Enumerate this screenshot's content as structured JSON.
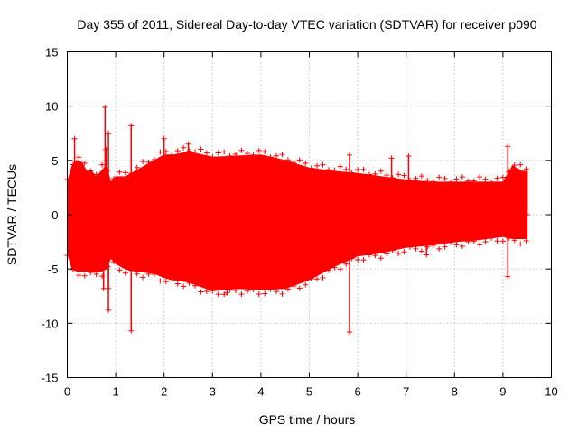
{
  "chart_data": {
    "type": "scatter",
    "title": "Day 355 of 2011, Sidereal Day-to-day VTEC variation (SDTVAR) for receiver p090",
    "xlabel": "GPS time / hours",
    "ylabel": "SDTVAR / TECUs",
    "xlim": [
      0,
      10
    ],
    "ylim": [
      -15,
      15
    ],
    "grid": true,
    "legend": "none",
    "xticks": [
      "0",
      "1",
      "2",
      "3",
      "4",
      "5",
      "6",
      "7",
      "8",
      "9",
      "10"
    ],
    "yticks": [
      "15",
      "10",
      "5",
      "0",
      "-5",
      "-10",
      "-15"
    ],
    "series": [
      {
        "name": "SDTVAR",
        "color": "#ff0000",
        "marker": "+",
        "envelope": {
          "x": [
            0.0,
            0.1,
            0.2,
            0.3,
            0.4,
            0.5,
            0.6,
            0.7,
            0.8,
            0.9,
            1.0,
            1.2,
            1.4,
            1.6,
            1.8,
            2.0,
            2.2,
            2.5,
            3.0,
            3.5,
            4.0,
            4.5,
            5.0,
            5.5,
            6.0,
            6.5,
            7.0,
            7.5,
            8.0,
            8.5,
            9.0,
            9.2,
            9.4,
            9.5
          ],
          "upper": [
            3.0,
            4.5,
            5.0,
            4.8,
            4.0,
            4.0,
            3.5,
            4.0,
            4.5,
            3.0,
            3.5,
            3.5,
            4.0,
            4.5,
            5.0,
            5.5,
            5.5,
            5.8,
            5.3,
            5.4,
            5.5,
            5.0,
            4.3,
            4.0,
            3.8,
            3.5,
            3.2,
            3.0,
            3.0,
            3.0,
            3.0,
            4.5,
            4.0,
            4.0
          ],
          "lower": [
            -3.5,
            -5.0,
            -5.2,
            -5.2,
            -5.2,
            -5.3,
            -5.3,
            -5.2,
            -5.0,
            -4.0,
            -4.5,
            -5.0,
            -5.2,
            -5.3,
            -5.4,
            -5.8,
            -6.0,
            -6.2,
            -7.0,
            -6.8,
            -6.9,
            -6.8,
            -6.0,
            -4.8,
            -3.8,
            -3.5,
            -3.0,
            -2.8,
            -2.5,
            -2.3,
            -2.0,
            -2.2,
            -2.2,
            -2.2
          ]
        },
        "spikes": [
          {
            "x": 0.15,
            "y": 7.0
          },
          {
            "x": 0.78,
            "y": 9.9
          },
          {
            "x": 0.8,
            "y": 6.0
          },
          {
            "x": 0.85,
            "y": 7.5
          },
          {
            "x": 0.75,
            "y": -6.8
          },
          {
            "x": 0.85,
            "y": -6.8
          },
          {
            "x": 0.85,
            "y": -8.8
          },
          {
            "x": 1.32,
            "y": 8.2
          },
          {
            "x": 1.32,
            "y": -10.7
          },
          {
            "x": 2.0,
            "y": 7.0
          },
          {
            "x": 2.5,
            "y": 6.5
          },
          {
            "x": 3.3,
            "y": -7.2
          },
          {
            "x": 5.83,
            "y": 5.5
          },
          {
            "x": 5.83,
            "y": -10.8
          },
          {
            "x": 6.7,
            "y": 5.2
          },
          {
            "x": 7.05,
            "y": 5.4
          },
          {
            "x": 7.42,
            "y": -3.7
          },
          {
            "x": 9.1,
            "y": 6.3
          },
          {
            "x": 9.1,
            "y": -5.7
          },
          {
            "x": 9.5,
            "y": 0.0
          }
        ]
      }
    ]
  }
}
